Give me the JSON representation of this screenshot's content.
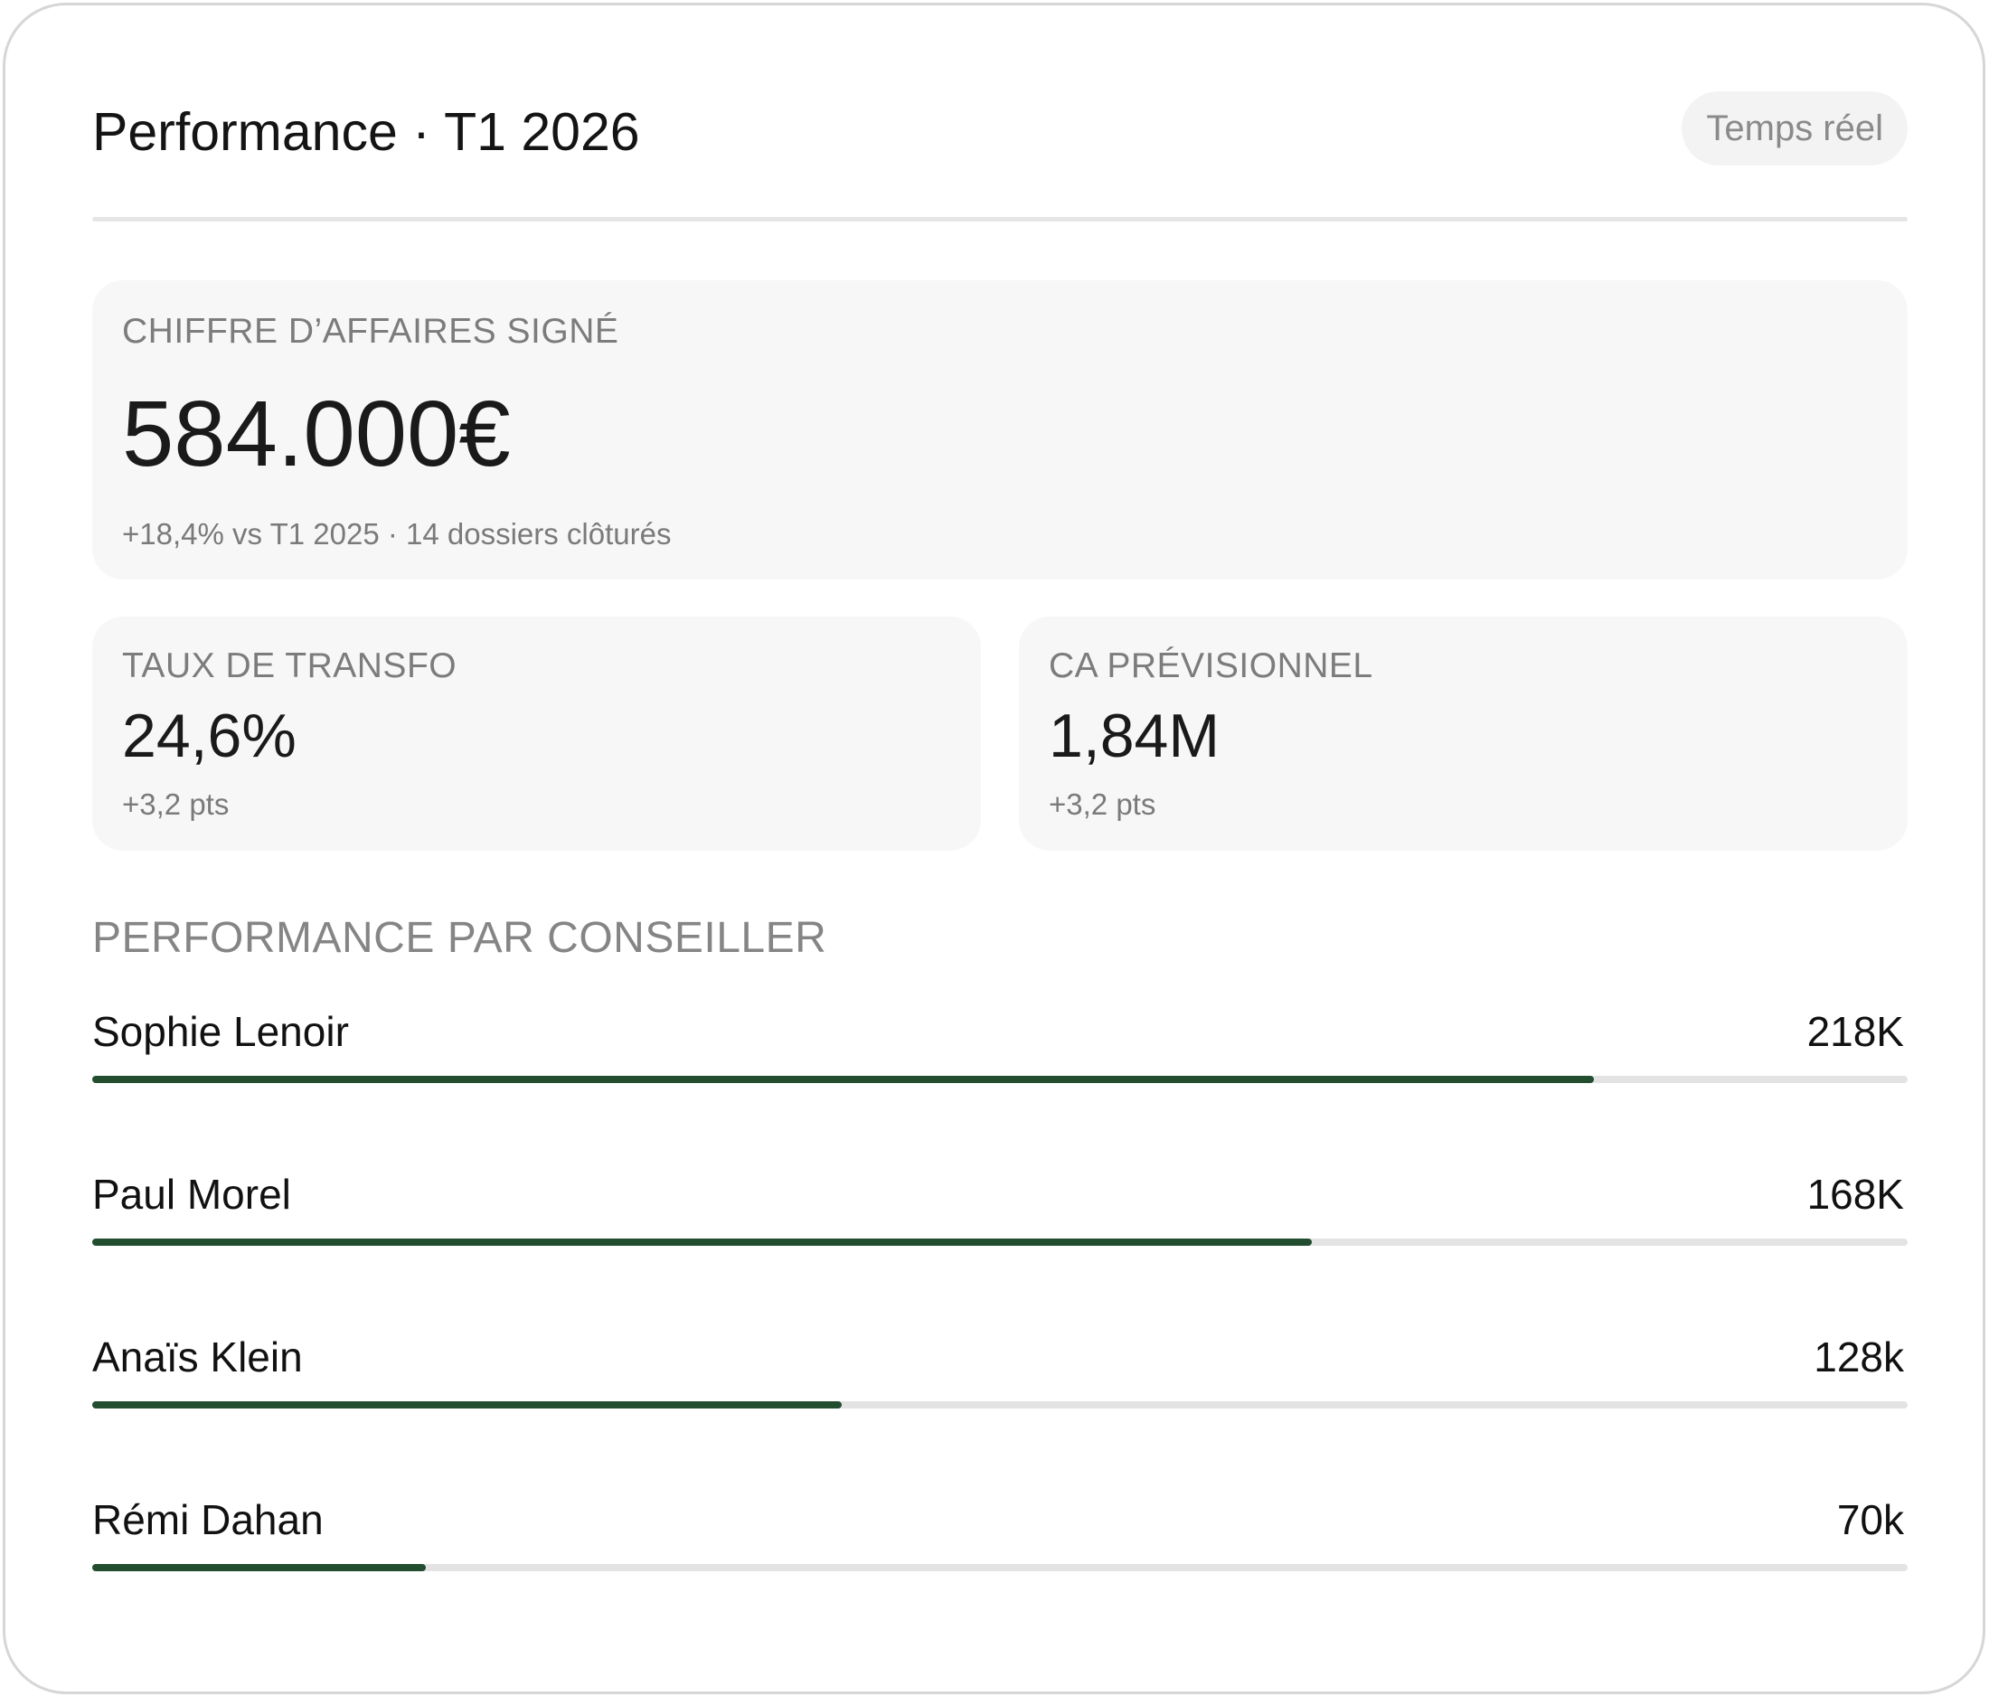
{
  "header": {
    "title": "Performance · T1 2026",
    "badge": "Temps réel"
  },
  "kpis": {
    "revenue": {
      "label": "CHIFFRE D’AFFAIRES SIGNÉ",
      "value": "584.000€",
      "sub": "+18,4% vs T1 2025 · 14  dossiers clôturés"
    },
    "conversion": {
      "label": "TAUX DE TRANSFO",
      "value": "24,6%",
      "sub": "+3,2 pts"
    },
    "forecast": {
      "label": "CA PRÉVISIONNEL",
      "value": "1,84M",
      "sub": "+3,2 pts"
    }
  },
  "advisors_section": {
    "title": "PERFORMANCE PAR CONSEILLER",
    "items": [
      {
        "name": "Sophie Lenoir",
        "value": "218K",
        "progress": 0.827
      },
      {
        "name": "Paul Morel",
        "value": "168K",
        "progress": 0.672
      },
      {
        "name": "Anaïs Klein",
        "value": "128k",
        "progress": 0.413
      },
      {
        "name": "Rémi Dahan",
        "value": "70k",
        "progress": 0.184
      }
    ]
  },
  "colors": {
    "bar_fill": "#234d2f",
    "bar_track": "#e3e3e3",
    "card_bg": "#f7f7f7"
  }
}
